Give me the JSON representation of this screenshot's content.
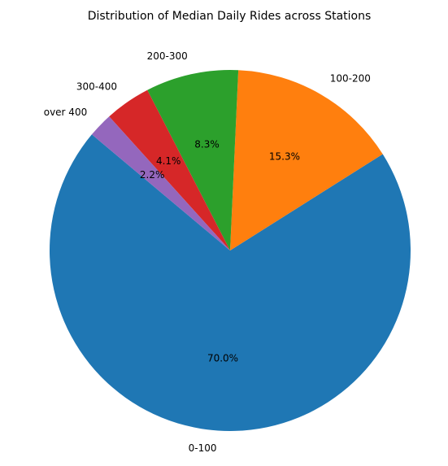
{
  "chart_data": {
    "type": "pie",
    "title": "Distribution of Median Daily Rides across Stations",
    "start_angle_deg": 140,
    "direction": "counterclockwise",
    "slices": [
      {
        "label": "0-100",
        "value": 70.0,
        "pct_label": "70.0%",
        "color": "#1f77b4"
      },
      {
        "label": "100-200",
        "value": 15.3,
        "pct_label": "15.3%",
        "color": "#ff7f0e"
      },
      {
        "label": "200-300",
        "value": 8.3,
        "pct_label": "8.3%",
        "color": "#2ca02c"
      },
      {
        "label": "300-400",
        "value": 4.1,
        "pct_label": "4.1%",
        "color": "#d62728"
      },
      {
        "label": "over 400",
        "value": 2.2,
        "pct_label": "2.2%",
        "color": "#9467bd"
      }
    ]
  }
}
